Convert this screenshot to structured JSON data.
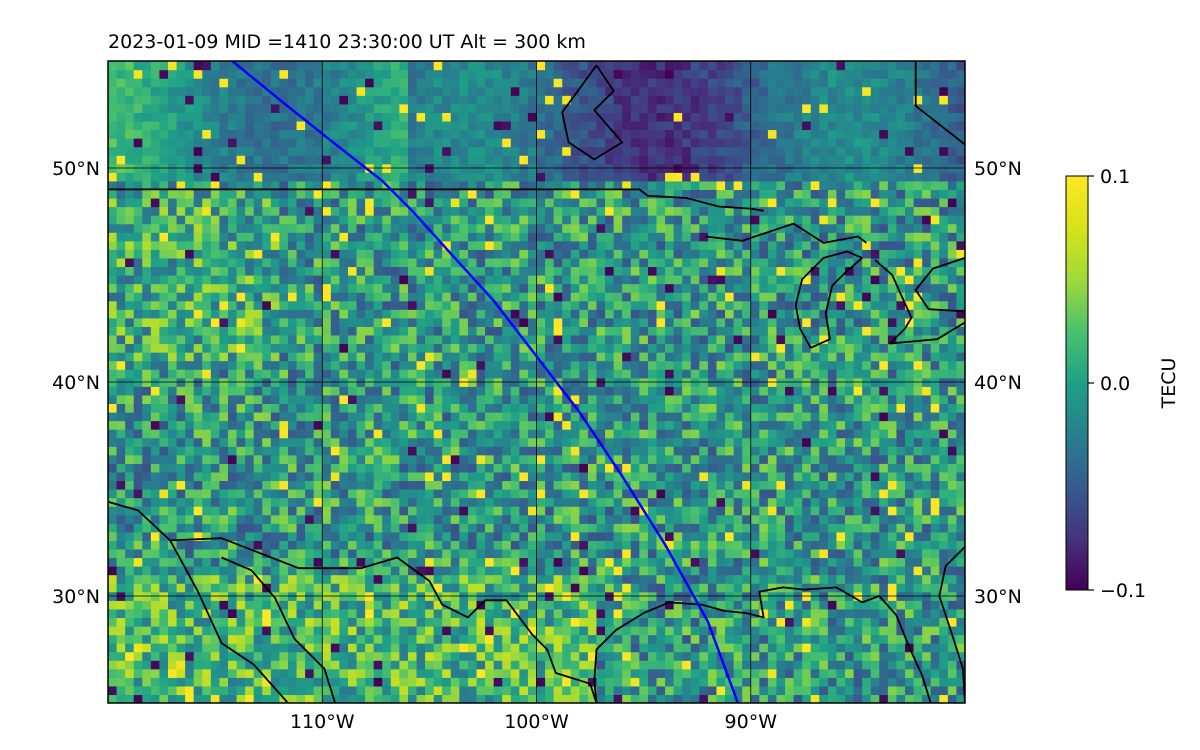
{
  "figure": {
    "title": "2023-01-09  MID =1410    23:30:00  UT  Alt = 300 km"
  },
  "map": {
    "type": "heatmap",
    "lon_range": [
      -120,
      -80
    ],
    "lat_range": [
      25,
      55
    ],
    "grid": true,
    "lat_ticks": [
      {
        "value": 30,
        "label": "30°N"
      },
      {
        "value": 40,
        "label": "40°N"
      },
      {
        "value": 50,
        "label": "50°N"
      }
    ],
    "lon_ticks": [
      {
        "value": -110,
        "label": "110°W"
      },
      {
        "value": -100,
        "label": "100°W"
      },
      {
        "value": -90,
        "label": "90°W"
      }
    ],
    "satellite_track": {
      "color": "#0000ff",
      "points": [
        [
          -114.2,
          55
        ],
        [
          -112.0,
          53.2
        ],
        [
          -109.5,
          51.2
        ],
        [
          -107.2,
          49.4
        ],
        [
          -105.8,
          48.0
        ],
        [
          -104.0,
          46.0
        ],
        [
          -102.0,
          43.8
        ],
        [
          -100.0,
          41.2
        ],
        [
          -98.0,
          38.6
        ],
        [
          -96.0,
          35.6
        ],
        [
          -94.0,
          32.4
        ],
        [
          -92.0,
          28.8
        ],
        [
          -90.6,
          25
        ]
      ]
    },
    "borders": {
      "color": "#000000",
      "lines": [
        [
          [
            -120,
            49.0
          ],
          [
            -95.2,
            49.0
          ],
          [
            -94.8,
            48.7
          ],
          [
            -93.0,
            48.6
          ],
          [
            -91.5,
            48.2
          ],
          [
            -90.0,
            48.1
          ],
          [
            -89.4,
            48.0
          ]
        ],
        [
          [
            -120,
            34.4
          ],
          [
            -118.6,
            34.0
          ],
          [
            -117.1,
            32.6
          ],
          [
            -114.7,
            32.7
          ],
          [
            -111.1,
            31.3
          ],
          [
            -108.2,
            31.3
          ],
          [
            -106.5,
            31.8
          ],
          [
            -105.0,
            30.7
          ],
          [
            -104.4,
            29.6
          ],
          [
            -103.2,
            29.0
          ],
          [
            -102.4,
            29.8
          ],
          [
            -101.4,
            29.8
          ],
          [
            -100.2,
            28.2
          ],
          [
            -99.5,
            27.5
          ],
          [
            -99.1,
            26.4
          ],
          [
            -97.5,
            25.9
          ],
          [
            -97.2,
            25
          ]
        ],
        [
          [
            -117.1,
            32.6
          ],
          [
            -116.5,
            31.5
          ],
          [
            -115.8,
            30.2
          ],
          [
            -114.7,
            27.8
          ],
          [
            -113.2,
            26.8
          ],
          [
            -111.6,
            25
          ]
        ],
        [
          [
            -114.7,
            31.8
          ],
          [
            -113.3,
            31.2
          ],
          [
            -112.2,
            29.9
          ],
          [
            -111.3,
            28.0
          ],
          [
            -109.9,
            26.6
          ],
          [
            -109.4,
            25
          ]
        ],
        [
          [
            -97.2,
            25
          ],
          [
            -97.3,
            26.0
          ],
          [
            -97.2,
            27.5
          ],
          [
            -96.3,
            28.4
          ],
          [
            -95.0,
            29.2
          ],
          [
            -93.8,
            29.7
          ],
          [
            -92.3,
            29.6
          ],
          [
            -91.2,
            29.3
          ],
          [
            -90.2,
            29.2
          ],
          [
            -89.4,
            29.0
          ],
          [
            -89.6,
            30.2
          ],
          [
            -88.5,
            30.4
          ],
          [
            -87.5,
            30.3
          ],
          [
            -86.0,
            30.4
          ],
          [
            -84.8,
            29.7
          ],
          [
            -84.0,
            30.0
          ],
          [
            -83.2,
            29.1
          ],
          [
            -82.6,
            27.6
          ],
          [
            -82.0,
            26.3
          ],
          [
            -81.6,
            25
          ]
        ],
        [
          [
            -80.0,
            32.3
          ],
          [
            -80.9,
            31.4
          ],
          [
            -81.2,
            30.0
          ],
          [
            -80.6,
            28.2
          ],
          [
            -80.1,
            26.6
          ],
          [
            -80.0,
            25
          ]
        ],
        [
          [
            -92.1,
            46.8
          ],
          [
            -90.4,
            46.6
          ],
          [
            -88.0,
            47.4
          ],
          [
            -86.6,
            46.5
          ],
          [
            -85.0,
            46.8
          ],
          [
            -84.6,
            46.5
          ]
        ],
        [
          [
            -84.8,
            45.8
          ],
          [
            -85.6,
            45.1
          ],
          [
            -86.2,
            44.5
          ],
          [
            -86.5,
            43.2
          ],
          [
            -86.3,
            42.0
          ],
          [
            -87.2,
            41.6
          ],
          [
            -87.7,
            42.5
          ],
          [
            -87.9,
            43.6
          ],
          [
            -87.6,
            44.8
          ],
          [
            -86.6,
            45.8
          ],
          [
            -85.5,
            46.1
          ],
          [
            -84.8,
            45.8
          ]
        ],
        [
          [
            -84.2,
            45.7
          ],
          [
            -83.4,
            45.0
          ],
          [
            -82.5,
            43.0
          ],
          [
            -82.8,
            42.5
          ],
          [
            -83.5,
            41.8
          ],
          [
            -81.3,
            42.0
          ],
          [
            -79.8,
            42.9
          ],
          [
            -78.9,
            42.9
          ],
          [
            -80.0,
            43.3
          ],
          [
            -81.7,
            43.4
          ],
          [
            -82.3,
            44.3
          ],
          [
            -81.5,
            45.3
          ],
          [
            -80.0,
            45.8
          ]
        ],
        [
          [
            -97.2,
            54.8
          ],
          [
            -96.4,
            53.6
          ],
          [
            -97.3,
            52.7
          ],
          [
            -96.0,
            51.2
          ],
          [
            -97.3,
            50.4
          ],
          [
            -98.5,
            51.2
          ],
          [
            -98.8,
            52.6
          ],
          [
            -97.2,
            54.8
          ]
        ],
        [
          [
            -80.0,
            51.1
          ],
          [
            -82.3,
            52.9
          ],
          [
            -82.3,
            55
          ]
        ]
      ]
    },
    "raster_seed": 1410
  },
  "colorbar": {
    "label": "TECU",
    "min": -0.1,
    "max": 0.1,
    "ticks": [
      {
        "value": 0.1,
        "label": "0.1"
      },
      {
        "value": 0.0,
        "label": "0.0"
      },
      {
        "value": -0.1,
        "label": "−0.1"
      }
    ]
  }
}
